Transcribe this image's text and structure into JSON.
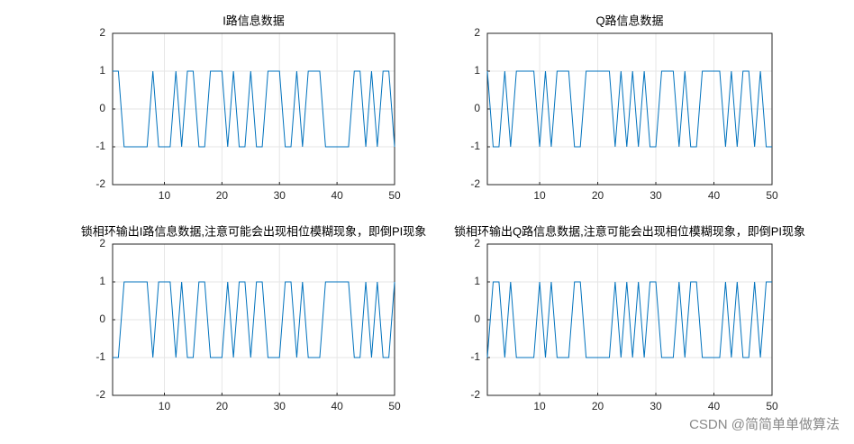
{
  "chart_data": [
    {
      "type": "line",
      "title": "I路信息数据",
      "x": [
        1,
        2,
        3,
        4,
        5,
        6,
        7,
        8,
        9,
        10,
        11,
        12,
        13,
        14,
        15,
        16,
        17,
        18,
        19,
        20,
        21,
        22,
        23,
        24,
        25,
        26,
        27,
        28,
        29,
        30,
        31,
        32,
        33,
        34,
        35,
        36,
        37,
        38,
        39,
        40,
        41,
        42,
        43,
        44,
        45,
        46,
        47,
        48,
        49,
        50
      ],
      "series": [
        {
          "color": "#0072bd",
          "values": [
            1,
            1,
            -1,
            -1,
            -1,
            -1,
            -1,
            1,
            -1,
            -1,
            -1,
            1,
            -1,
            1,
            1,
            -1,
            -1,
            1,
            1,
            1,
            -1,
            1,
            -1,
            -1,
            1,
            -1,
            -1,
            1,
            1,
            1,
            -1,
            -1,
            1,
            -1,
            1,
            1,
            1,
            -1,
            -1,
            -1,
            -1,
            -1,
            1,
            1,
            -1,
            1,
            -1,
            1,
            1,
            -1
          ]
        }
      ],
      "xlim": [
        1,
        50
      ],
      "ylim": [
        -2,
        2
      ],
      "xticks": [
        10,
        20,
        30,
        40,
        50
      ],
      "yticks": [
        -2,
        -1,
        0,
        1,
        2
      ],
      "grid": true
    },
    {
      "type": "line",
      "title": "Q路信息数据",
      "x": [
        1,
        2,
        3,
        4,
        5,
        6,
        7,
        8,
        9,
        10,
        11,
        12,
        13,
        14,
        15,
        16,
        17,
        18,
        19,
        20,
        21,
        22,
        23,
        24,
        25,
        26,
        27,
        28,
        29,
        30,
        31,
        32,
        33,
        34,
        35,
        36,
        37,
        38,
        39,
        40,
        41,
        42,
        43,
        44,
        45,
        46,
        47,
        48,
        49,
        50
      ],
      "series": [
        {
          "color": "#0072bd",
          "values": [
            1,
            -1,
            -1,
            1,
            -1,
            1,
            1,
            1,
            1,
            -1,
            1,
            -1,
            1,
            1,
            1,
            -1,
            -1,
            1,
            1,
            1,
            1,
            1,
            -1,
            1,
            -1,
            1,
            -1,
            1,
            -1,
            -1,
            1,
            1,
            1,
            -1,
            1,
            -1,
            -1,
            1,
            1,
            1,
            1,
            -1,
            1,
            -1,
            1,
            1,
            -1,
            1,
            -1,
            -1
          ]
        }
      ],
      "xlim": [
        1,
        50
      ],
      "ylim": [
        -2,
        2
      ],
      "xticks": [
        10,
        20,
        30,
        40,
        50
      ],
      "yticks": [
        -2,
        -1,
        0,
        1,
        2
      ],
      "grid": true
    },
    {
      "type": "line",
      "title": "锁相环输出I路信息数据,注意可能会出现相位模糊现象，即倒PI现象",
      "x": [
        1,
        2,
        3,
        4,
        5,
        6,
        7,
        8,
        9,
        10,
        11,
        12,
        13,
        14,
        15,
        16,
        17,
        18,
        19,
        20,
        21,
        22,
        23,
        24,
        25,
        26,
        27,
        28,
        29,
        30,
        31,
        32,
        33,
        34,
        35,
        36,
        37,
        38,
        39,
        40,
        41,
        42,
        43,
        44,
        45,
        46,
        47,
        48,
        49,
        50
      ],
      "series": [
        {
          "color": "#0072bd",
          "values": [
            -1,
            -1,
            1,
            1,
            1,
            1,
            1,
            -1,
            1,
            1,
            1,
            -1,
            1,
            -1,
            -1,
            1,
            1,
            -1,
            -1,
            -1,
            1,
            -1,
            1,
            1,
            -1,
            1,
            1,
            -1,
            -1,
            -1,
            1,
            1,
            -1,
            1,
            -1,
            -1,
            -1,
            1,
            1,
            1,
            1,
            1,
            -1,
            -1,
            1,
            -1,
            1,
            -1,
            -1,
            1
          ]
        }
      ],
      "xlim": [
        1,
        50
      ],
      "ylim": [
        -2,
        2
      ],
      "xticks": [
        10,
        20,
        30,
        40,
        50
      ],
      "yticks": [
        -2,
        -1,
        0,
        1,
        2
      ],
      "grid": true
    },
    {
      "type": "line",
      "title": "锁相环输出Q路信息数据,注意可能会出现相位模糊现象，即倒PI现象",
      "x": [
        1,
        2,
        3,
        4,
        5,
        6,
        7,
        8,
        9,
        10,
        11,
        12,
        13,
        14,
        15,
        16,
        17,
        18,
        19,
        20,
        21,
        22,
        23,
        24,
        25,
        26,
        27,
        28,
        29,
        30,
        31,
        32,
        33,
        34,
        35,
        36,
        37,
        38,
        39,
        40,
        41,
        42,
        43,
        44,
        45,
        46,
        47,
        48,
        49,
        50
      ],
      "series": [
        {
          "color": "#0072bd",
          "values": [
            -1,
            1,
            1,
            -1,
            1,
            -1,
            -1,
            -1,
            -1,
            1,
            -1,
            1,
            -1,
            -1,
            -1,
            1,
            1,
            -1,
            -1,
            -1,
            -1,
            -1,
            1,
            -1,
            1,
            -1,
            1,
            -1,
            1,
            1,
            -1,
            -1,
            -1,
            1,
            -1,
            1,
            1,
            -1,
            -1,
            -1,
            -1,
            1,
            -1,
            1,
            -1,
            -1,
            1,
            -1,
            1,
            1
          ]
        }
      ],
      "xlim": [
        1,
        50
      ],
      "ylim": [
        -2,
        2
      ],
      "xticks": [
        10,
        20,
        30,
        40,
        50
      ],
      "yticks": [
        -2,
        -1,
        0,
        1,
        2
      ],
      "grid": true
    }
  ],
  "watermark": "CSDN @简简单单做算法"
}
